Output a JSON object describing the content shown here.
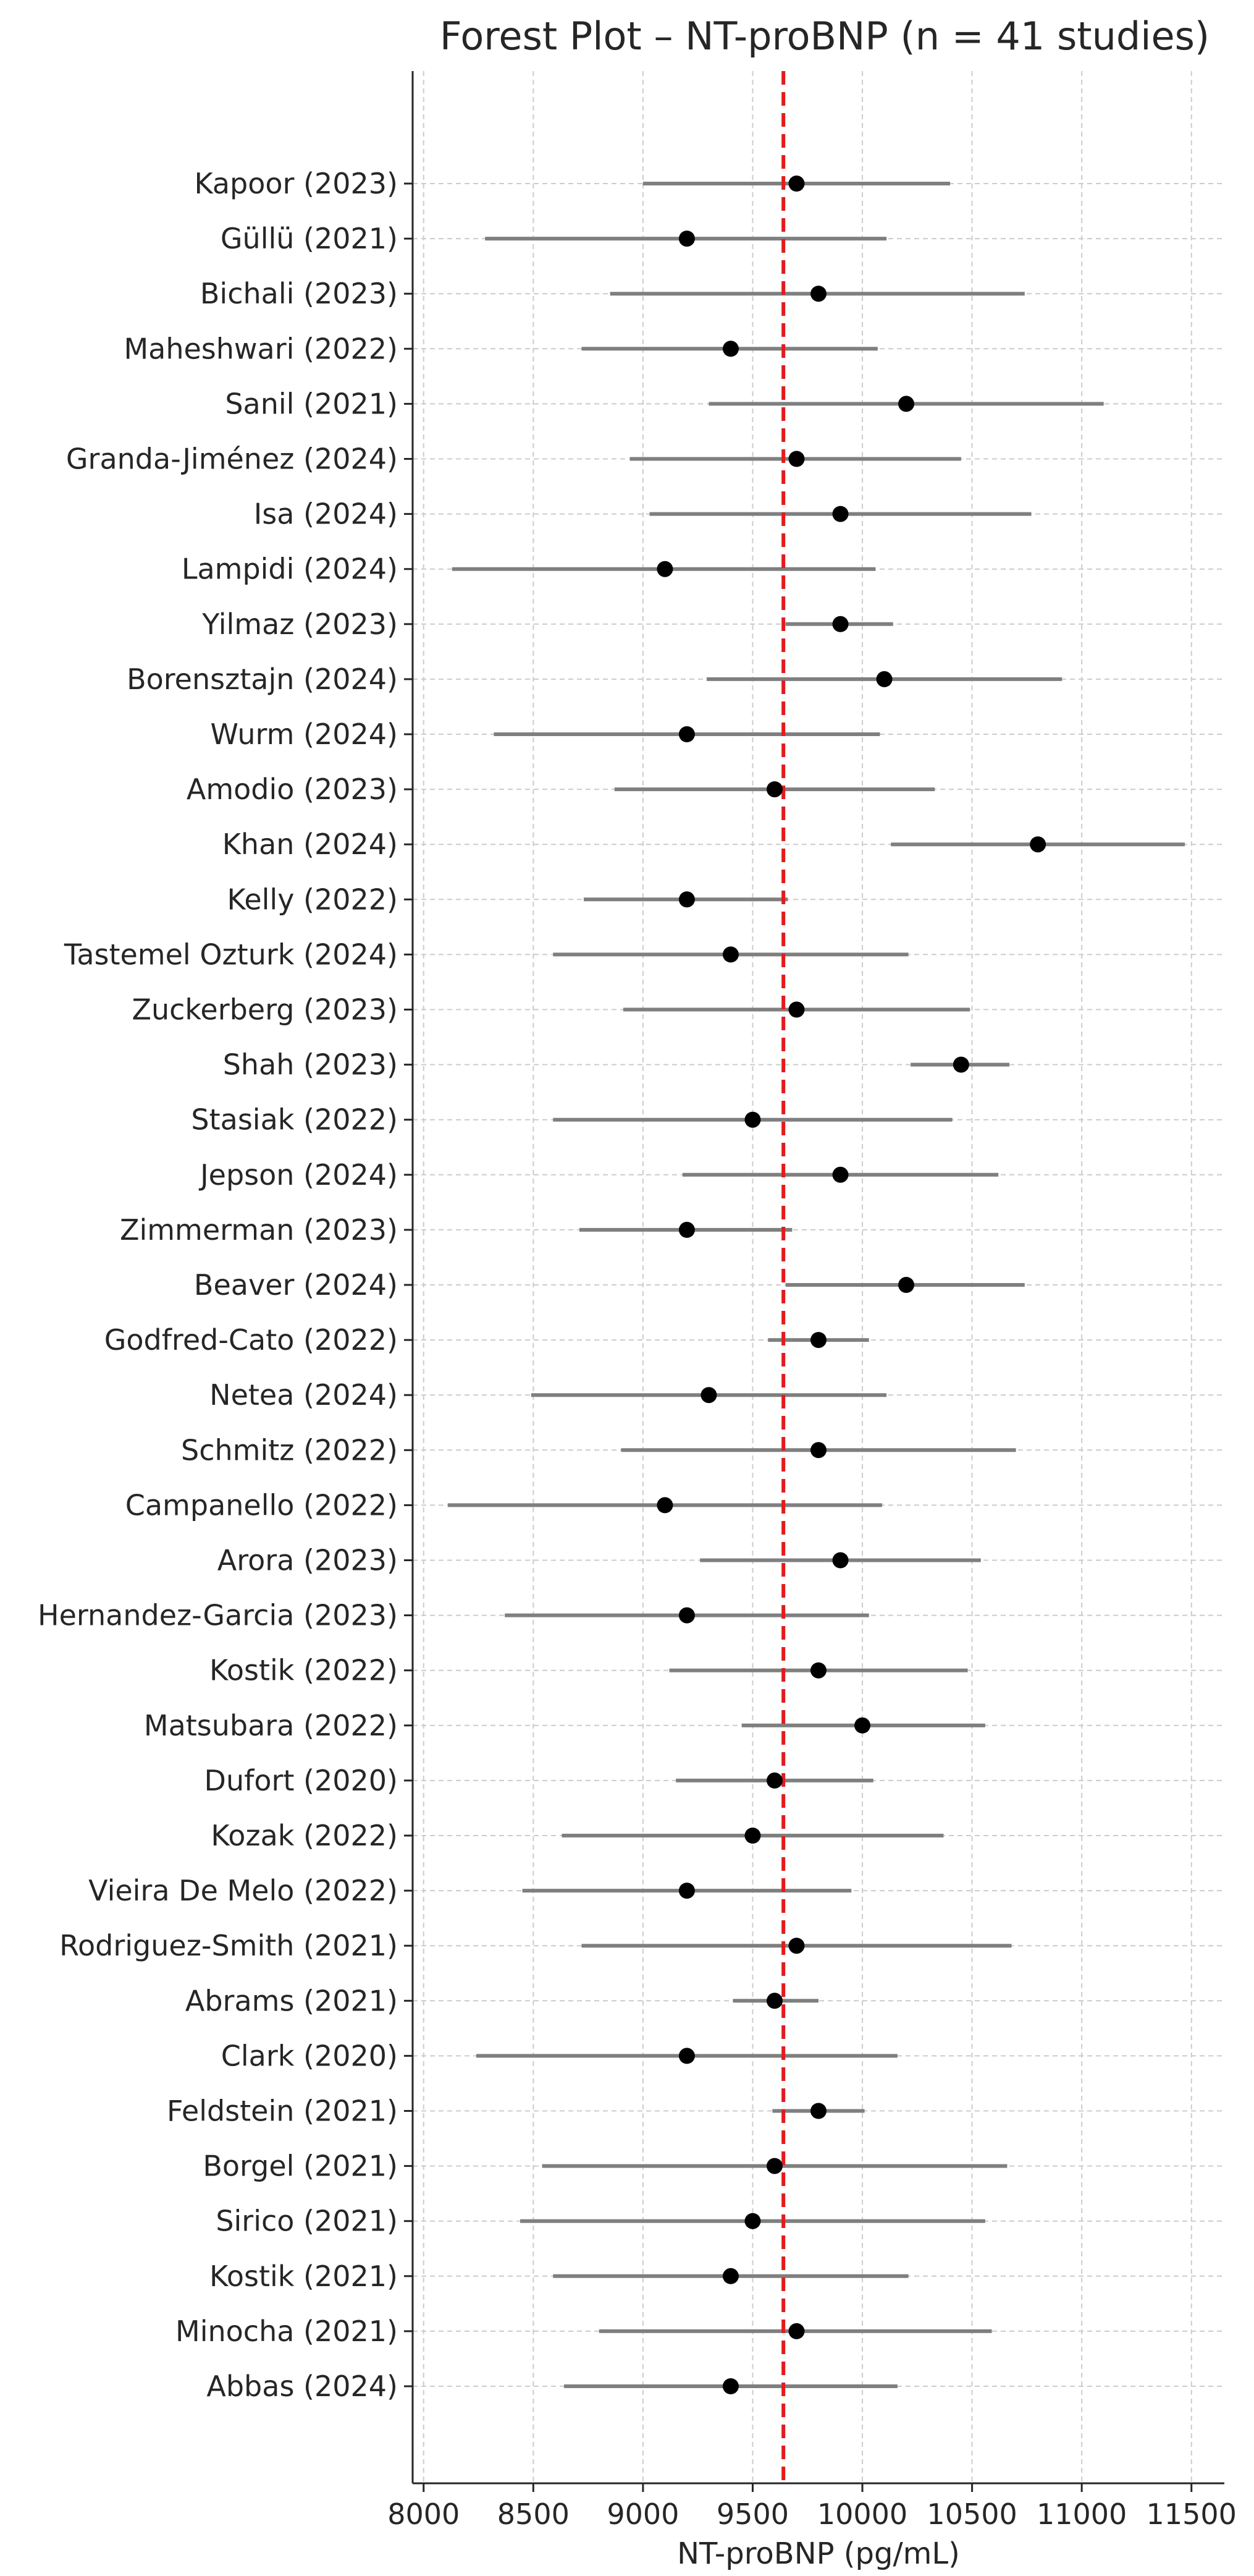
{
  "chart_data": {
    "type": "forest",
    "title": "Forest Plot – NT-proBNP (n = 41 studies)",
    "xlabel": "NT-proBNP (pg/mL)",
    "ylabel": "",
    "xlim": [
      7950,
      11650
    ],
    "xticks": [
      8000,
      8500,
      9000,
      9500,
      10000,
      10500,
      11000,
      11500
    ],
    "xtick_labels": [
      "8000",
      "8500",
      "9000",
      "9500",
      "10000",
      "10500",
      "11000",
      "11500"
    ],
    "grid": true,
    "reference_line": {
      "value": 9640,
      "color": "#e41a1c",
      "style": "dashed"
    },
    "colors": {
      "point": "#000000",
      "ci": "#7f7f7f",
      "grid": "#cccccc",
      "axis": "#262626"
    },
    "studies": [
      {
        "label": "Kapoor (2023)",
        "estimate": 9700,
        "lower": 9000,
        "upper": 10400
      },
      {
        "label": "Güllü (2021)",
        "estimate": 9200,
        "lower": 8280,
        "upper": 10110
      },
      {
        "label": "Bichali (2023)",
        "estimate": 9800,
        "lower": 8850,
        "upper": 10740
      },
      {
        "label": "Maheshwari (2022)",
        "estimate": 9400,
        "lower": 8720,
        "upper": 10070
      },
      {
        "label": "Sanil (2021)",
        "estimate": 10200,
        "lower": 9300,
        "upper": 11100
      },
      {
        "label": "Granda-Jiménez (2024)",
        "estimate": 9700,
        "lower": 8940,
        "upper": 10450
      },
      {
        "label": "Isa (2024)",
        "estimate": 9900,
        "lower": 9030,
        "upper": 10770
      },
      {
        "label": "Lampidi (2024)",
        "estimate": 9100,
        "lower": 8130,
        "upper": 10060
      },
      {
        "label": "Yilmaz (2023)",
        "estimate": 9900,
        "lower": 9650,
        "upper": 10140
      },
      {
        "label": "Borensztajn (2024)",
        "estimate": 10100,
        "lower": 9290,
        "upper": 10910
      },
      {
        "label": "Wurm (2024)",
        "estimate": 9200,
        "lower": 8320,
        "upper": 10080
      },
      {
        "label": "Amodio (2023)",
        "estimate": 9600,
        "lower": 8870,
        "upper": 10330
      },
      {
        "label": "Khan (2024)",
        "estimate": 10800,
        "lower": 10130,
        "upper": 11470
      },
      {
        "label": "Kelly (2022)",
        "estimate": 9200,
        "lower": 8730,
        "upper": 9660
      },
      {
        "label": "Tastemel Ozturk (2024)",
        "estimate": 9400,
        "lower": 8590,
        "upper": 10210
      },
      {
        "label": "Zuckerberg (2023)",
        "estimate": 9700,
        "lower": 8910,
        "upper": 10490
      },
      {
        "label": "Shah (2023)",
        "estimate": 10450,
        "lower": 10220,
        "upper": 10670
      },
      {
        "label": "Stasiak (2022)",
        "estimate": 9500,
        "lower": 8590,
        "upper": 10410
      },
      {
        "label": "Jepson (2024)",
        "estimate": 9900,
        "lower": 9180,
        "upper": 10620
      },
      {
        "label": "Zimmerman (2023)",
        "estimate": 9200,
        "lower": 8710,
        "upper": 9680
      },
      {
        "label": "Beaver (2024)",
        "estimate": 10200,
        "lower": 9650,
        "upper": 10740
      },
      {
        "label": "Godfred-Cato (2022)",
        "estimate": 9800,
        "lower": 9570,
        "upper": 10030
      },
      {
        "label": "Netea (2024)",
        "estimate": 9300,
        "lower": 8490,
        "upper": 10110
      },
      {
        "label": "Schmitz (2022)",
        "estimate": 9800,
        "lower": 8900,
        "upper": 10700
      },
      {
        "label": "Campanello (2022)",
        "estimate": 9100,
        "lower": 8110,
        "upper": 10090
      },
      {
        "label": "Arora (2023)",
        "estimate": 9900,
        "lower": 9260,
        "upper": 10540
      },
      {
        "label": "Hernandez-Garcia (2023)",
        "estimate": 9200,
        "lower": 8370,
        "upper": 10030
      },
      {
        "label": "Kostik (2022)",
        "estimate": 9800,
        "lower": 9120,
        "upper": 10480
      },
      {
        "label": "Matsubara (2022)",
        "estimate": 10000,
        "lower": 9450,
        "upper": 10560
      },
      {
        "label": "Dufort (2020)",
        "estimate": 9600,
        "lower": 9150,
        "upper": 10050
      },
      {
        "label": "Kozak (2022)",
        "estimate": 9500,
        "lower": 8630,
        "upper": 10370
      },
      {
        "label": "Vieira De Melo (2022)",
        "estimate": 9200,
        "lower": 8450,
        "upper": 9950
      },
      {
        "label": "Rodriguez-Smith (2021)",
        "estimate": 9700,
        "lower": 8720,
        "upper": 10680
      },
      {
        "label": "Abrams (2021)",
        "estimate": 9600,
        "lower": 9410,
        "upper": 9800
      },
      {
        "label": "Clark (2020)",
        "estimate": 9200,
        "lower": 8240,
        "upper": 10160
      },
      {
        "label": "Feldstein (2021)",
        "estimate": 9800,
        "lower": 9590,
        "upper": 10010
      },
      {
        "label": "Borgel (2021)",
        "estimate": 9600,
        "lower": 8540,
        "upper": 10660
      },
      {
        "label": "Sirico (2021)",
        "estimate": 9500,
        "lower": 8440,
        "upper": 10560
      },
      {
        "label": "Kostik (2021)",
        "estimate": 9400,
        "lower": 8590,
        "upper": 10210
      },
      {
        "label": "Minocha (2021)",
        "estimate": 9700,
        "lower": 8800,
        "upper": 10590
      },
      {
        "label": "Abbas (2024)",
        "estimate": 9400,
        "lower": 8640,
        "upper": 10160
      }
    ]
  }
}
